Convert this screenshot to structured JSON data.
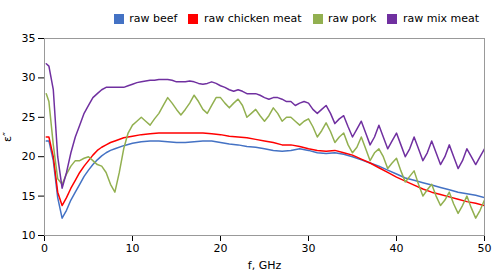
{
  "chart_data": {
    "type": "line",
    "xlabel": "f, GHz",
    "ylabel": "ε″",
    "xlim": [
      0,
      50
    ],
    "ylim": [
      10,
      35
    ],
    "xticks": [
      0,
      10,
      20,
      30,
      40,
      50
    ],
    "yticks": [
      10,
      15,
      20,
      25,
      30,
      35
    ],
    "grid": false,
    "legend": "upper right",
    "series": [
      {
        "name": "raw beef",
        "color": "#4472C4",
        "x": [
          0.2,
          0.5,
          1.0,
          1.5,
          2.0,
          2.5,
          3.0,
          3.5,
          4.0,
          4.5,
          5.0,
          5.5,
          6.0,
          6.5,
          7.0,
          7.5,
          8.0,
          9.0,
          10.0,
          11.0,
          12.0,
          13.0,
          14.0,
          15.0,
          16.0,
          17.0,
          18.0,
          19.0,
          20.0,
          21.0,
          22.0,
          23.0,
          24.0,
          25.0,
          26.0,
          27.0,
          28.0,
          29.0,
          30.0,
          31.0,
          32.0,
          33.0,
          34.0,
          35.0,
          36.0,
          37.0,
          38.0,
          39.0,
          40.0,
          41.0,
          42.0,
          43.0,
          44.0,
          45.0,
          46.0,
          47.0,
          48.0,
          49.0,
          50.0
        ],
        "values": [
          22.0,
          22.0,
          19.5,
          14.8,
          12.2,
          13.2,
          14.5,
          15.5,
          16.5,
          17.5,
          18.3,
          19.0,
          19.6,
          20.1,
          20.5,
          20.8,
          21.0,
          21.4,
          21.7,
          21.9,
          22.0,
          22.0,
          21.9,
          21.8,
          21.8,
          21.9,
          22.0,
          22.0,
          21.8,
          21.6,
          21.5,
          21.3,
          21.2,
          21.0,
          20.8,
          20.7,
          20.8,
          21.0,
          20.8,
          20.5,
          20.4,
          20.5,
          20.3,
          20.0,
          19.6,
          19.2,
          18.8,
          18.3,
          17.8,
          17.3,
          17.0,
          16.7,
          16.4,
          16.1,
          15.8,
          15.5,
          15.3,
          15.1,
          14.8
        ]
      },
      {
        "name": "raw chicken meat",
        "color": "#FF0000",
        "x": [
          0.2,
          0.5,
          1.0,
          1.5,
          2.0,
          2.5,
          3.0,
          3.5,
          4.0,
          4.5,
          5.0,
          5.5,
          6.0,
          6.5,
          7.0,
          7.5,
          8.0,
          9.0,
          10.0,
          11.0,
          12.0,
          13.0,
          14.0,
          15.0,
          16.0,
          17.0,
          18.0,
          19.0,
          20.0,
          21.0,
          22.0,
          23.0,
          24.0,
          25.0,
          26.0,
          27.0,
          28.0,
          29.0,
          30.0,
          31.0,
          32.0,
          33.0,
          34.0,
          35.0,
          36.0,
          37.0,
          38.0,
          39.0,
          40.0,
          41.0,
          42.0,
          43.0,
          44.0,
          45.0,
          46.0,
          47.0,
          48.0,
          49.0,
          50.0
        ],
        "values": [
          22.5,
          22.5,
          20.0,
          15.5,
          13.8,
          14.8,
          16.0,
          17.0,
          18.0,
          18.8,
          19.5,
          20.2,
          20.8,
          21.2,
          21.5,
          21.8,
          22.0,
          22.4,
          22.6,
          22.8,
          22.9,
          23.0,
          23.0,
          23.0,
          23.0,
          23.0,
          23.0,
          22.9,
          22.8,
          22.6,
          22.5,
          22.4,
          22.2,
          22.0,
          21.8,
          21.5,
          21.5,
          21.3,
          21.0,
          20.8,
          20.7,
          20.8,
          20.5,
          20.2,
          19.7,
          19.2,
          18.6,
          18.0,
          17.4,
          16.9,
          16.4,
          15.9,
          15.5,
          15.2,
          14.9,
          14.6,
          14.3,
          14.1,
          13.8
        ]
      },
      {
        "name": "raw pork",
        "color": "#92B050",
        "x": [
          0.2,
          0.5,
          1.0,
          1.5,
          2.0,
          2.5,
          3.0,
          3.5,
          4.0,
          4.5,
          5.0,
          5.5,
          6.0,
          6.5,
          7.0,
          7.5,
          8.0,
          8.5,
          9.0,
          9.5,
          10.0,
          10.5,
          11.0,
          11.5,
          12.0,
          12.5,
          13.0,
          13.5,
          14.0,
          14.5,
          15.0,
          15.5,
          16.0,
          16.5,
          17.0,
          17.5,
          18.0,
          18.5,
          19.0,
          19.5,
          20.0,
          20.5,
          21.0,
          21.5,
          22.0,
          22.5,
          23.0,
          23.5,
          24.0,
          24.5,
          25.0,
          25.5,
          26.0,
          26.5,
          27.0,
          27.5,
          28.0,
          28.5,
          29.0,
          29.5,
          30.0,
          30.5,
          31.0,
          31.5,
          32.0,
          32.5,
          33.0,
          33.5,
          34.0,
          34.5,
          35.0,
          35.5,
          36.0,
          36.5,
          37.0,
          37.5,
          38.0,
          38.5,
          39.0,
          39.5,
          40.0,
          40.5,
          41.0,
          41.5,
          42.0,
          42.5,
          43.0,
          43.5,
          44.0,
          44.5,
          45.0,
          45.5,
          46.0,
          46.5,
          47.0,
          47.5,
          48.0,
          48.5,
          49.0,
          49.5,
          50.0
        ],
        "values": [
          28.0,
          27.0,
          21.5,
          17.2,
          16.5,
          17.8,
          18.8,
          19.5,
          19.5,
          19.8,
          20.0,
          19.5,
          19.0,
          18.8,
          18.0,
          16.5,
          15.5,
          18.0,
          21.0,
          23.0,
          24.0,
          24.5,
          25.0,
          24.5,
          24.0,
          24.8,
          25.5,
          26.5,
          27.5,
          26.8,
          26.0,
          25.3,
          26.0,
          26.8,
          27.8,
          27.0,
          26.0,
          25.5,
          26.5,
          27.5,
          27.5,
          26.8,
          26.2,
          26.8,
          27.3,
          26.5,
          25.0,
          25.5,
          26.0,
          25.2,
          24.5,
          25.2,
          26.2,
          25.5,
          24.5,
          25.0,
          25.0,
          24.5,
          24.0,
          24.5,
          24.8,
          23.8,
          22.5,
          23.3,
          24.3,
          23.2,
          21.8,
          22.5,
          23.0,
          21.5,
          20.5,
          21.2,
          22.5,
          21.0,
          19.5,
          20.5,
          21.0,
          20.0,
          18.5,
          19.2,
          19.8,
          18.2,
          16.8,
          17.5,
          18.2,
          16.5,
          15.0,
          15.8,
          16.5,
          15.0,
          13.8,
          14.5,
          15.5,
          14.0,
          12.8,
          13.8,
          15.0,
          13.5,
          12.2,
          13.2,
          14.5
        ]
      },
      {
        "name": "raw mix meat",
        "color": "#7030A0",
        "x": [
          0.2,
          0.5,
          1.0,
          1.5,
          2.0,
          2.5,
          3.0,
          3.5,
          4.0,
          4.5,
          5.0,
          5.5,
          6.0,
          6.5,
          7.0,
          7.5,
          8.0,
          8.5,
          9.0,
          9.5,
          10.0,
          10.5,
          11.0,
          11.5,
          12.0,
          12.5,
          13.0,
          13.5,
          14.0,
          14.5,
          15.0,
          15.5,
          16.0,
          16.5,
          17.0,
          17.5,
          18.0,
          18.5,
          19.0,
          19.5,
          20.0,
          20.5,
          21.0,
          21.5,
          22.0,
          22.5,
          23.0,
          23.5,
          24.0,
          24.5,
          25.0,
          25.5,
          26.0,
          26.5,
          27.0,
          27.5,
          28.0,
          28.5,
          29.0,
          29.5,
          30.0,
          30.5,
          31.0,
          31.5,
          32.0,
          32.5,
          33.0,
          33.5,
          34.0,
          34.5,
          35.0,
          35.5,
          36.0,
          36.5,
          37.0,
          37.5,
          38.0,
          38.5,
          39.0,
          39.5,
          40.0,
          40.5,
          41.0,
          41.5,
          42.0,
          42.5,
          43.0,
          43.5,
          44.0,
          44.5,
          45.0,
          45.5,
          46.0,
          46.5,
          47.0,
          47.5,
          48.0,
          48.5,
          49.0,
          49.5,
          50.0
        ],
        "values": [
          31.8,
          31.5,
          28.5,
          20.0,
          16.0,
          18.0,
          20.5,
          22.5,
          24.0,
          25.5,
          26.5,
          27.5,
          28.0,
          28.5,
          28.8,
          28.8,
          28.8,
          28.8,
          28.8,
          29.0,
          29.2,
          29.4,
          29.5,
          29.6,
          29.7,
          29.7,
          29.8,
          29.8,
          29.8,
          29.7,
          29.5,
          29.5,
          29.5,
          29.6,
          29.5,
          29.3,
          29.2,
          29.3,
          29.5,
          29.3,
          29.0,
          28.8,
          28.5,
          28.3,
          28.5,
          28.3,
          28.0,
          28.0,
          28.0,
          27.8,
          27.5,
          27.3,
          27.5,
          27.5,
          27.3,
          27.0,
          27.0,
          26.5,
          26.8,
          27.0,
          26.8,
          26.0,
          25.5,
          26.0,
          26.5,
          25.5,
          24.2,
          24.8,
          25.2,
          23.8,
          22.5,
          23.5,
          24.5,
          23.0,
          21.5,
          22.5,
          24.0,
          22.5,
          21.0,
          22.0,
          23.0,
          21.5,
          20.0,
          21.0,
          22.5,
          21.0,
          19.5,
          20.5,
          22.0,
          20.5,
          19.0,
          20.0,
          21.5,
          20.0,
          18.5,
          19.5,
          21.0,
          20.0,
          19.0,
          20.0,
          21.0
        ]
      }
    ]
  }
}
